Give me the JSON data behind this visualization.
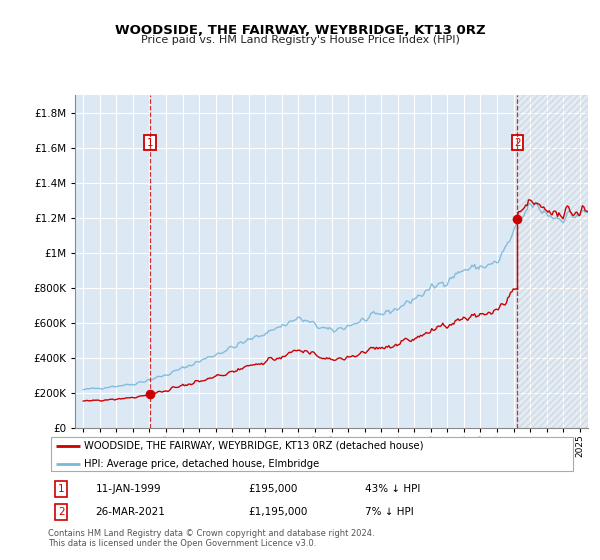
{
  "title": "WOODSIDE, THE FAIRWAY, WEYBRIDGE, KT13 0RZ",
  "subtitle": "Price paid vs. HM Land Registry's House Price Index (HPI)",
  "legend_line1": "WOODSIDE, THE FAIRWAY, WEYBRIDGE, KT13 0RZ (detached house)",
  "legend_line2": "HPI: Average price, detached house, Elmbridge",
  "footnote1": "Contains HM Land Registry data © Crown copyright and database right 2024.",
  "footnote2": "This data is licensed under the Open Government Licence v3.0.",
  "sale1_date": "11-JAN-1999",
  "sale1_price": "£195,000",
  "sale1_hpi": "43% ↓ HPI",
  "sale2_date": "26-MAR-2021",
  "sale2_price": "£1,195,000",
  "sale2_hpi": "7% ↓ HPI",
  "hpi_color": "#7ab8d9",
  "price_color": "#cc0000",
  "sale_marker_color": "#cc0000",
  "plot_bg": "#dce9f5",
  "grid_color": "#ffffff",
  "hatch_color": "#bbbbbb",
  "ylim": [
    0,
    1900000
  ],
  "yticks": [
    0,
    200000,
    400000,
    600000,
    800000,
    1000000,
    1200000,
    1400000,
    1600000,
    1800000
  ],
  "sale1_year": 1999.03,
  "sale2_year": 2021.23,
  "sale1_val": 195000,
  "sale2_val": 1195000,
  "hpi_start_year": 1995.0,
  "hpi_end_year": 2025.0,
  "xmin": 1994.5,
  "xmax": 2025.5
}
